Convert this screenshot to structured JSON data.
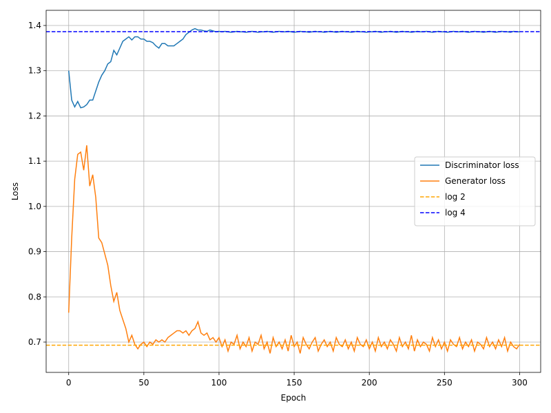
{
  "chart_data": {
    "type": "line",
    "xlabel": "Epoch",
    "ylabel": "Loss",
    "x": [
      0,
      2,
      4,
      6,
      8,
      10,
      12,
      14,
      16,
      18,
      20,
      22,
      24,
      26,
      28,
      30,
      32,
      34,
      36,
      38,
      40,
      42,
      44,
      46,
      48,
      50,
      52,
      54,
      56,
      58,
      60,
      62,
      64,
      66,
      68,
      70,
      72,
      74,
      76,
      78,
      80,
      82,
      84,
      86,
      88,
      90,
      92,
      94,
      96,
      98,
      100,
      102,
      104,
      106,
      108,
      110,
      112,
      114,
      116,
      118,
      120,
      122,
      124,
      126,
      128,
      130,
      132,
      134,
      136,
      138,
      140,
      142,
      144,
      146,
      148,
      150,
      152,
      154,
      156,
      158,
      160,
      162,
      164,
      166,
      168,
      170,
      172,
      174,
      176,
      178,
      180,
      182,
      184,
      186,
      188,
      190,
      192,
      194,
      196,
      198,
      200,
      202,
      204,
      206,
      208,
      210,
      212,
      214,
      216,
      218,
      220,
      222,
      224,
      226,
      228,
      230,
      232,
      234,
      236,
      238,
      240,
      242,
      244,
      246,
      248,
      250,
      252,
      254,
      256,
      258,
      260,
      262,
      264,
      266,
      268,
      270,
      272,
      274,
      276,
      278,
      280,
      282,
      284,
      286,
      288,
      290,
      292,
      294,
      296,
      298,
      300
    ],
    "series": [
      {
        "name": "Discriminator loss",
        "color": "#1f77b4",
        "values": [
          1.3,
          1.235,
          1.22,
          1.232,
          1.218,
          1.22,
          1.225,
          1.235,
          1.235,
          1.255,
          1.275,
          1.29,
          1.3,
          1.315,
          1.32,
          1.345,
          1.335,
          1.35,
          1.365,
          1.37,
          1.375,
          1.368,
          1.375,
          1.375,
          1.37,
          1.37,
          1.365,
          1.365,
          1.362,
          1.355,
          1.35,
          1.36,
          1.36,
          1.355,
          1.355,
          1.355,
          1.36,
          1.365,
          1.37,
          1.38,
          1.385,
          1.39,
          1.393,
          1.39,
          1.39,
          1.388,
          1.387,
          1.39,
          1.388,
          1.386,
          1.387,
          1.386,
          1.387,
          1.386,
          1.385,
          1.386,
          1.387,
          1.386,
          1.386,
          1.385,
          1.386,
          1.387,
          1.386,
          1.385,
          1.386,
          1.386,
          1.387,
          1.386,
          1.385,
          1.386,
          1.387,
          1.386,
          1.386,
          1.387,
          1.386,
          1.385,
          1.386,
          1.387,
          1.386,
          1.386,
          1.385,
          1.386,
          1.387,
          1.386,
          1.386,
          1.385,
          1.386,
          1.387,
          1.386,
          1.385,
          1.386,
          1.387,
          1.386,
          1.386,
          1.385,
          1.386,
          1.387,
          1.386,
          1.386,
          1.385,
          1.386,
          1.386,
          1.387,
          1.386,
          1.385,
          1.386,
          1.386,
          1.387,
          1.386,
          1.385,
          1.386,
          1.387,
          1.386,
          1.386,
          1.385,
          1.386,
          1.387,
          1.386,
          1.386,
          1.387,
          1.386,
          1.385,
          1.386,
          1.387,
          1.386,
          1.386,
          1.385,
          1.386,
          1.387,
          1.386,
          1.386,
          1.387,
          1.386,
          1.385,
          1.386,
          1.387,
          1.386,
          1.386,
          1.385,
          1.386,
          1.387,
          1.386,
          1.385,
          1.386,
          1.387,
          1.386,
          1.386,
          1.385,
          1.387,
          1.386,
          1.386
        ]
      },
      {
        "name": "Generator loss",
        "color": "#ff7f0e",
        "values": [
          0.765,
          0.93,
          1.06,
          1.115,
          1.12,
          1.08,
          1.135,
          1.045,
          1.07,
          1.02,
          0.93,
          0.92,
          0.895,
          0.87,
          0.825,
          0.79,
          0.81,
          0.77,
          0.75,
          0.73,
          0.7,
          0.715,
          0.695,
          0.685,
          0.695,
          0.7,
          0.69,
          0.7,
          0.695,
          0.705,
          0.7,
          0.705,
          0.7,
          0.71,
          0.715,
          0.72,
          0.725,
          0.725,
          0.72,
          0.725,
          0.715,
          0.725,
          0.73,
          0.745,
          0.72,
          0.715,
          0.72,
          0.705,
          0.71,
          0.7,
          0.71,
          0.69,
          0.705,
          0.68,
          0.7,
          0.695,
          0.715,
          0.685,
          0.7,
          0.69,
          0.71,
          0.68,
          0.7,
          0.695,
          0.715,
          0.685,
          0.7,
          0.675,
          0.71,
          0.69,
          0.7,
          0.685,
          0.705,
          0.68,
          0.715,
          0.69,
          0.7,
          0.675,
          0.71,
          0.695,
          0.685,
          0.7,
          0.71,
          0.68,
          0.695,
          0.705,
          0.69,
          0.7,
          0.68,
          0.71,
          0.695,
          0.69,
          0.705,
          0.685,
          0.7,
          0.68,
          0.71,
          0.695,
          0.69,
          0.705,
          0.685,
          0.7,
          0.68,
          0.71,
          0.69,
          0.7,
          0.685,
          0.705,
          0.695,
          0.68,
          0.71,
          0.69,
          0.7,
          0.685,
          0.715,
          0.68,
          0.705,
          0.69,
          0.7,
          0.695,
          0.68,
          0.71,
          0.69,
          0.705,
          0.685,
          0.7,
          0.68,
          0.705,
          0.695,
          0.69,
          0.71,
          0.685,
          0.7,
          0.69,
          0.705,
          0.68,
          0.7,
          0.695,
          0.685,
          0.71,
          0.69,
          0.7,
          0.685,
          0.705,
          0.69,
          0.71,
          0.68,
          0.7,
          0.69,
          0.685,
          0.695
        ]
      }
    ],
    "hlines": [
      {
        "name": "log 2",
        "value": 0.6931,
        "color": "orange",
        "dashed": true
      },
      {
        "name": "log 4",
        "value": 1.3863,
        "color": "blue",
        "dashed": true
      }
    ],
    "xlim": [
      -15,
      314
    ],
    "ylim": [
      0.633,
      1.4335
    ],
    "xticks": [
      0,
      50,
      100,
      150,
      200,
      250,
      300
    ],
    "yticks": [
      0.7,
      0.8,
      0.9,
      {
        "value": 1,
        "label": "1.0"
      },
      1.1,
      1.2,
      1.3,
      1.4
    ],
    "grid": true,
    "legend": "center right"
  }
}
